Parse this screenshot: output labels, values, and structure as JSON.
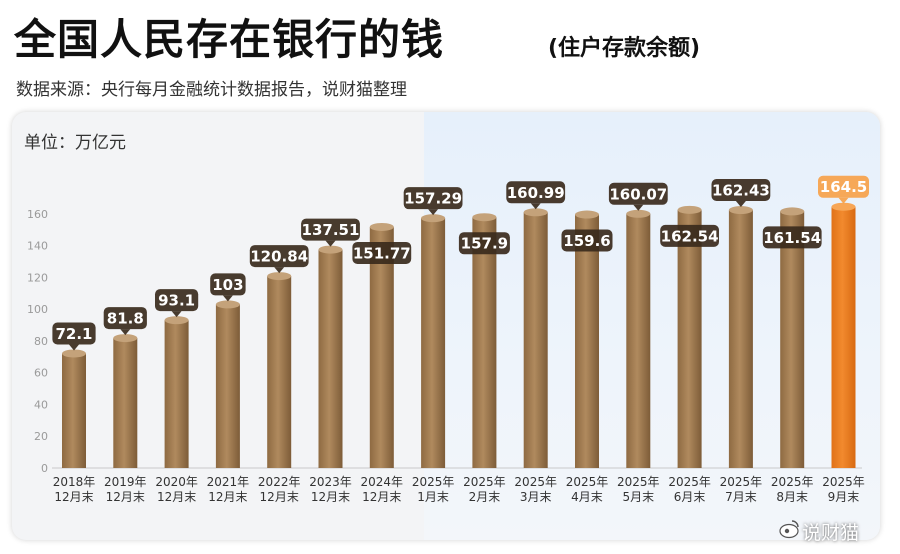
{
  "title": "全国人民存在银行的钱",
  "subtitle": "(住户存款余额)",
  "source": "数据来源：央行每月金融统计数据报告，说财猫整理",
  "unit_label": "单位：万亿元",
  "watermark": "说财猫",
  "colors": {
    "bar": "#b08a5e",
    "bar_highlight": "#f28a2e",
    "label_bg": "#3a2a1c",
    "label_bg_highlight": "#f6a24a",
    "panel_highlight": "#e6f0fb"
  },
  "chart_data": {
    "type": "bar",
    "title": "",
    "xlabel": "",
    "ylabel": "",
    "ylim": [
      0,
      170
    ],
    "yticks": [
      0,
      20,
      40,
      60,
      80,
      100,
      120,
      140,
      160
    ],
    "grid": false,
    "categories": [
      [
        "2018年",
        "12月末"
      ],
      [
        "2019年",
        "12月末"
      ],
      [
        "2020年",
        "12月末"
      ],
      [
        "2021年",
        "12月末"
      ],
      [
        "2022年",
        "12月末"
      ],
      [
        "2023年",
        "12月末"
      ],
      [
        "2024年",
        "12月末"
      ],
      [
        "2025年",
        "1月末"
      ],
      [
        "2025年",
        "2月末"
      ],
      [
        "2025年",
        "3月末"
      ],
      [
        "2025年",
        "4月末"
      ],
      [
        "2025年",
        "5月末"
      ],
      [
        "2025年",
        "6月末"
      ],
      [
        "2025年",
        "7月末"
      ],
      [
        "2025年",
        "8月末"
      ],
      [
        "2025年",
        "9月末"
      ]
    ],
    "values": [
      72.1,
      81.8,
      93.1,
      103,
      120.84,
      137.51,
      151.77,
      157.29,
      157.9,
      160.99,
      159.6,
      160.07,
      162.54,
      162.43,
      161.54,
      164.5
    ],
    "labels": [
      "72.1",
      "81.8",
      "93.1",
      "103",
      "120.84",
      "137.51",
      "151.77",
      "157.29",
      "157.9",
      "160.99",
      "159.6",
      "160.07",
      "162.54",
      "162.43",
      "161.54",
      "164.5"
    ],
    "label_position": [
      "top",
      "top",
      "top",
      "top",
      "top",
      "top",
      "mid",
      "top",
      "mid",
      "top",
      "mid",
      "top",
      "mid",
      "top",
      "mid",
      "top"
    ],
    "highlight_index": 15
  }
}
